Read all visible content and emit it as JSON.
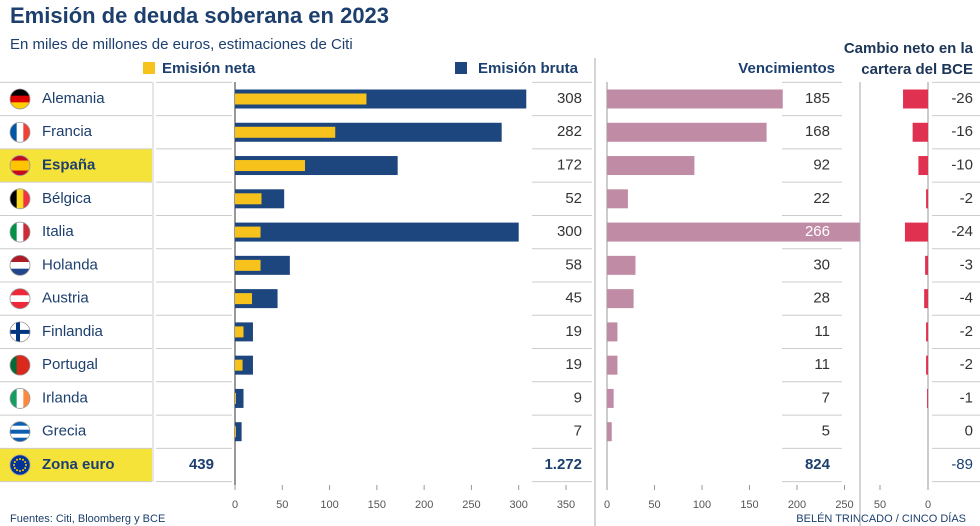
{
  "chart_data": [
    {
      "type": "bar",
      "title": "Emisión de deuda soberana en 2023",
      "subtitle": "En miles de millones de euros, estimaciones de Citi",
      "source": "Fuentes: Citi, Bloomberg y BCE",
      "credit": "BELÉN TRINCADO / CINCO DÍAS",
      "categories": [
        "Alemania",
        "Francia",
        "España",
        "Bélgica",
        "Italia",
        "Holanda",
        "Austria",
        "Finlandia",
        "Portugal",
        "Irlanda",
        "Grecia"
      ],
      "highlight": [
        2
      ],
      "total_label": "Zona euro",
      "series": [
        {
          "name": "Emisión neta",
          "color": "#f7c21b",
          "values": [
            139,
            106,
            74,
            28,
            27,
            27,
            18,
            9,
            8,
            1,
            1
          ]
        },
        {
          "name": "Emisión bruta",
          "color": "#1d467f",
          "values": [
            308,
            282,
            172,
            52,
            300,
            58,
            45,
            19,
            19,
            9,
            7
          ]
        }
      ],
      "totals": [
        439,
        {
          "value": 1272,
          "label": "1.272"
        }
      ],
      "xlim": [
        0,
        350
      ],
      "xticks": [
        0,
        50,
        100,
        150,
        200,
        250,
        300,
        350
      ]
    },
    {
      "type": "bar",
      "series": [
        {
          "name": "Vencimientos",
          "color": "#c08ca5",
          "values": [
            185,
            168,
            92,
            22,
            266,
            30,
            28,
            11,
            11,
            7,
            5
          ]
        }
      ],
      "totals": [
        824
      ],
      "xlim": [
        0,
        250
      ],
      "xticks": [
        0,
        50,
        100,
        150,
        200,
        250
      ]
    },
    {
      "type": "bar",
      "series": [
        {
          "name": "Cambio neto en la cartera del BCE",
          "color": "#e03250",
          "values": [
            -26,
            -16,
            -10,
            -2,
            -24,
            -3,
            -4,
            -2,
            -2,
            -1,
            0
          ]
        }
      ],
      "totals": [
        -89
      ],
      "xlim": [
        -50,
        0
      ],
      "xticks": [
        {
          "value": -50,
          "label": "50"
        },
        0
      ]
    }
  ]
}
